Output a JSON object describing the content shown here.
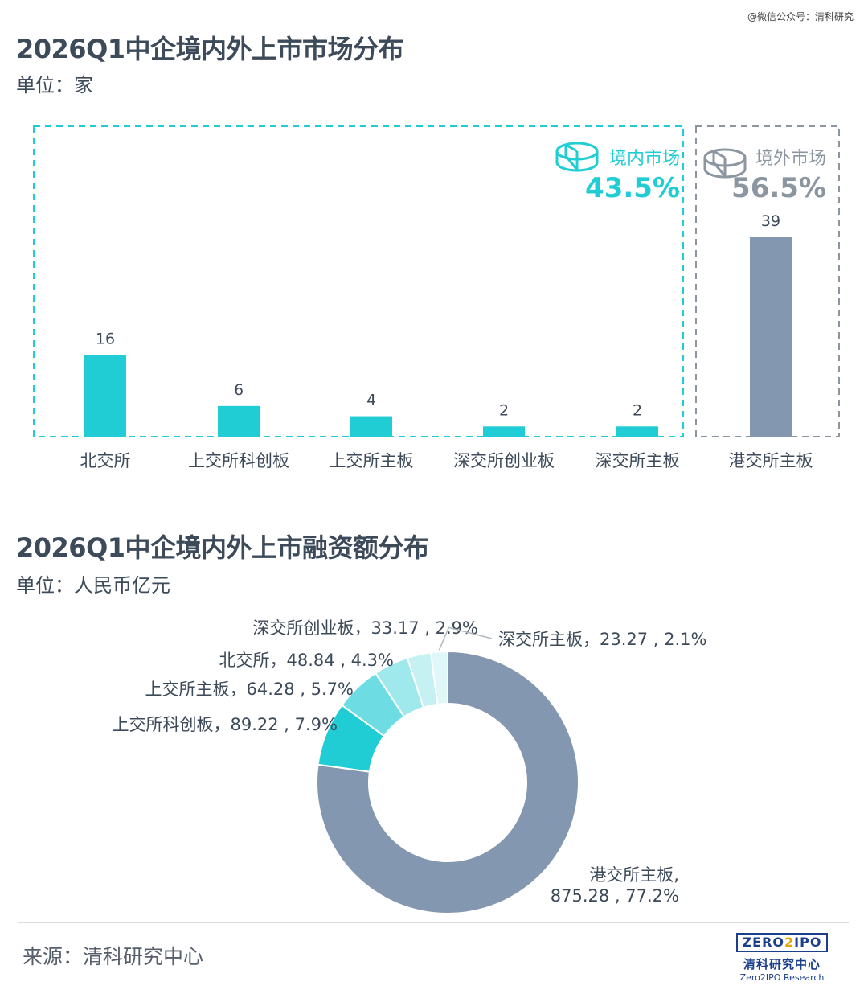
{
  "watermark": "@微信公众号：清科研究",
  "chart1_text": {
    "title": "2026Q1中企境内外上市市场分布",
    "unit": "单位：家",
    "domestic_label": "境内市场",
    "domestic_pct": "43.5%",
    "overseas_label": "境外市场",
    "overseas_pct": "56.5%"
  },
  "chart2_text": {
    "title": "2026Q1中企境内外上市融资额分布",
    "unit": "单位：人民币亿元"
  },
  "footer": {
    "source": "来源：清科研究中心",
    "logo_mark_a": "ZERO",
    "logo_mark_two": "2",
    "logo_mark_b": "IPO",
    "logo_cn": "清科研究中心",
    "logo_en": "Zero2IPO Research"
  },
  "colors": {
    "domestic": "#20cdd4",
    "overseas": "#8497b0",
    "pie_hk": "#8497b0",
    "pie_star": "#20cdd4",
    "pie_sse": "#6edde3",
    "pie_bse": "#9fe8ec",
    "pie_gem": "#c5f1f3",
    "pie_szse": "#dff7f8",
    "text": "#3d4a59"
  },
  "chart_data": [
    {
      "type": "bar",
      "categories": [
        "北交所",
        "上交所科创板",
        "上交所主板",
        "深交所创业板",
        "深交所主板",
        "港交所主板"
      ],
      "values": [
        16,
        6,
        4,
        2,
        2,
        39
      ],
      "groups": [
        "domestic",
        "domestic",
        "domestic",
        "domestic",
        "domestic",
        "overseas"
      ],
      "ylim": [
        0,
        45
      ]
    },
    {
      "type": "pie",
      "style": "donut",
      "slices": [
        {
          "name": "港交所主板",
          "value": 875.28,
          "pct": "77.2%",
          "label_line1": "港交所主板,",
          "label_line2": "875.28 , 77.2%",
          "colorKey": "pie_hk"
        },
        {
          "name": "上交所科创板",
          "value": 89.22,
          "pct": "7.9%",
          "label_line1": "上交所科创板，89.22 , 7.9%",
          "colorKey": "pie_star"
        },
        {
          "name": "上交所主板",
          "value": 64.28,
          "pct": "5.7%",
          "label_line1": "上交所主板，64.28 , 5.7%",
          "colorKey": "pie_sse"
        },
        {
          "name": "北交所",
          "value": 48.84,
          "pct": "4.3%",
          "label_line1": "北交所，48.84 , 4.3%",
          "colorKey": "pie_bse"
        },
        {
          "name": "深交所创业板",
          "value": 33.17,
          "pct": "2.9%",
          "label_line1": "深交所创业板，33.17 , 2.9%",
          "colorKey": "pie_gem"
        },
        {
          "name": "深交所主板",
          "value": 23.27,
          "pct": "2.1%",
          "label_line1": "深交所主板，23.27 , 2.1%",
          "colorKey": "pie_szse"
        }
      ]
    }
  ]
}
